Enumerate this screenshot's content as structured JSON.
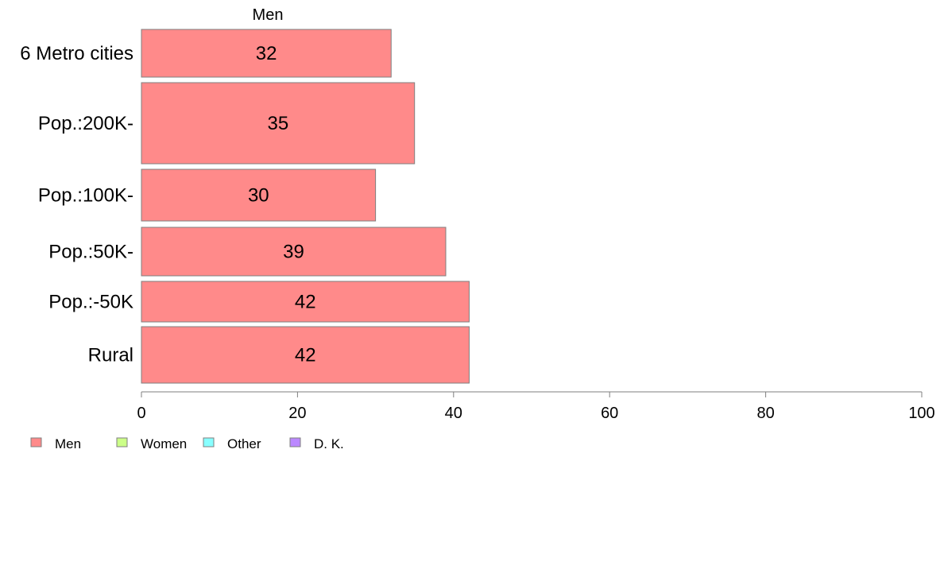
{
  "chart_data": {
    "type": "bar",
    "orientation": "horizontal",
    "series_heading": "Men",
    "categories": [
      "6 Metro cities",
      "Pop.:200K-",
      "Pop.:100K-",
      "Pop.:50K-",
      "Pop.:-50K",
      "Rural"
    ],
    "series": [
      {
        "name": "Men",
        "values": [
          32,
          35,
          30,
          39,
          42,
          42
        ],
        "color": "#ff8a8a"
      }
    ],
    "xlim": [
      0,
      100
    ],
    "x_ticks": [
      "0",
      "20",
      "40",
      "60",
      "80",
      "100"
    ],
    "grid": false,
    "legend_position": "bottom-left",
    "legend": [
      {
        "label": "Men",
        "color": "#ff8a8a"
      },
      {
        "label": "Women",
        "color": "#ccff88"
      },
      {
        "label": "Other",
        "color": "#88ffff"
      },
      {
        "label": "D. K.",
        "color": "#bb88ff"
      }
    ]
  }
}
